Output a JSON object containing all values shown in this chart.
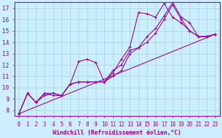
{
  "bg_color": "#cceeff",
  "line_color": "#990099",
  "grid_color": "#aadddd",
  "xlabel": "Windchill (Refroidissement éolien,°C)",
  "xlim": [
    -0.5,
    23.5
  ],
  "ylim": [
    7.5,
    17.5
  ],
  "yticks": [
    8,
    9,
    10,
    11,
    12,
    13,
    14,
    15,
    16,
    17
  ],
  "xticks": [
    0,
    1,
    2,
    3,
    4,
    5,
    6,
    7,
    8,
    9,
    10,
    11,
    12,
    13,
    14,
    15,
    16,
    17,
    18,
    19,
    20,
    21,
    22,
    23
  ],
  "series": [
    {
      "x": [
        0,
        1,
        2,
        3,
        4,
        5,
        6,
        7,
        8,
        9,
        10,
        11,
        12,
        13,
        14,
        15,
        16,
        17,
        18,
        19,
        20,
        21,
        22,
        23
      ],
      "y": [
        7.7,
        9.5,
        8.7,
        9.5,
        9.3,
        9.3,
        10.3,
        12.3,
        12.5,
        12.2,
        10.5,
        11.3,
        12.5,
        13.6,
        16.6,
        16.5,
        16.2,
        17.4,
        16.2,
        15.7,
        15.0,
        14.5,
        14.5,
        14.7
      ],
      "marker": "+"
    },
    {
      "x": [
        0,
        1,
        2,
        3,
        4,
        5,
        6,
        7,
        8,
        9,
        10,
        11,
        12,
        13,
        14,
        15,
        16,
        17,
        18,
        19,
        20,
        21,
        22,
        23
      ],
      "y": [
        7.7,
        9.5,
        8.7,
        9.5,
        9.5,
        9.3,
        10.3,
        10.5,
        10.5,
        10.5,
        10.5,
        11.5,
        12.0,
        13.3,
        13.5,
        14.5,
        15.2,
        16.3,
        17.5,
        16.2,
        15.7,
        14.5,
        14.5,
        14.7
      ],
      "marker": "+"
    },
    {
      "x": [
        0,
        1,
        2,
        3,
        4,
        5,
        6,
        7,
        8,
        9,
        10,
        11,
        12,
        13,
        14,
        15,
        16,
        17,
        18,
        19,
        20,
        21,
        22,
        23
      ],
      "y": [
        7.7,
        9.5,
        8.7,
        9.3,
        9.5,
        9.3,
        10.3,
        10.5,
        10.5,
        10.5,
        10.5,
        11.0,
        11.5,
        13.0,
        13.5,
        14.0,
        14.8,
        16.0,
        17.3,
        16.0,
        15.0,
        14.5,
        14.5,
        14.7
      ],
      "marker": "+"
    },
    {
      "x": [
        0,
        23
      ],
      "y": [
        7.7,
        14.7
      ],
      "marker": null
    }
  ],
  "title_color": "#990099",
  "tick_fontsize": 5.5,
  "xlabel_fontsize": 6.0
}
